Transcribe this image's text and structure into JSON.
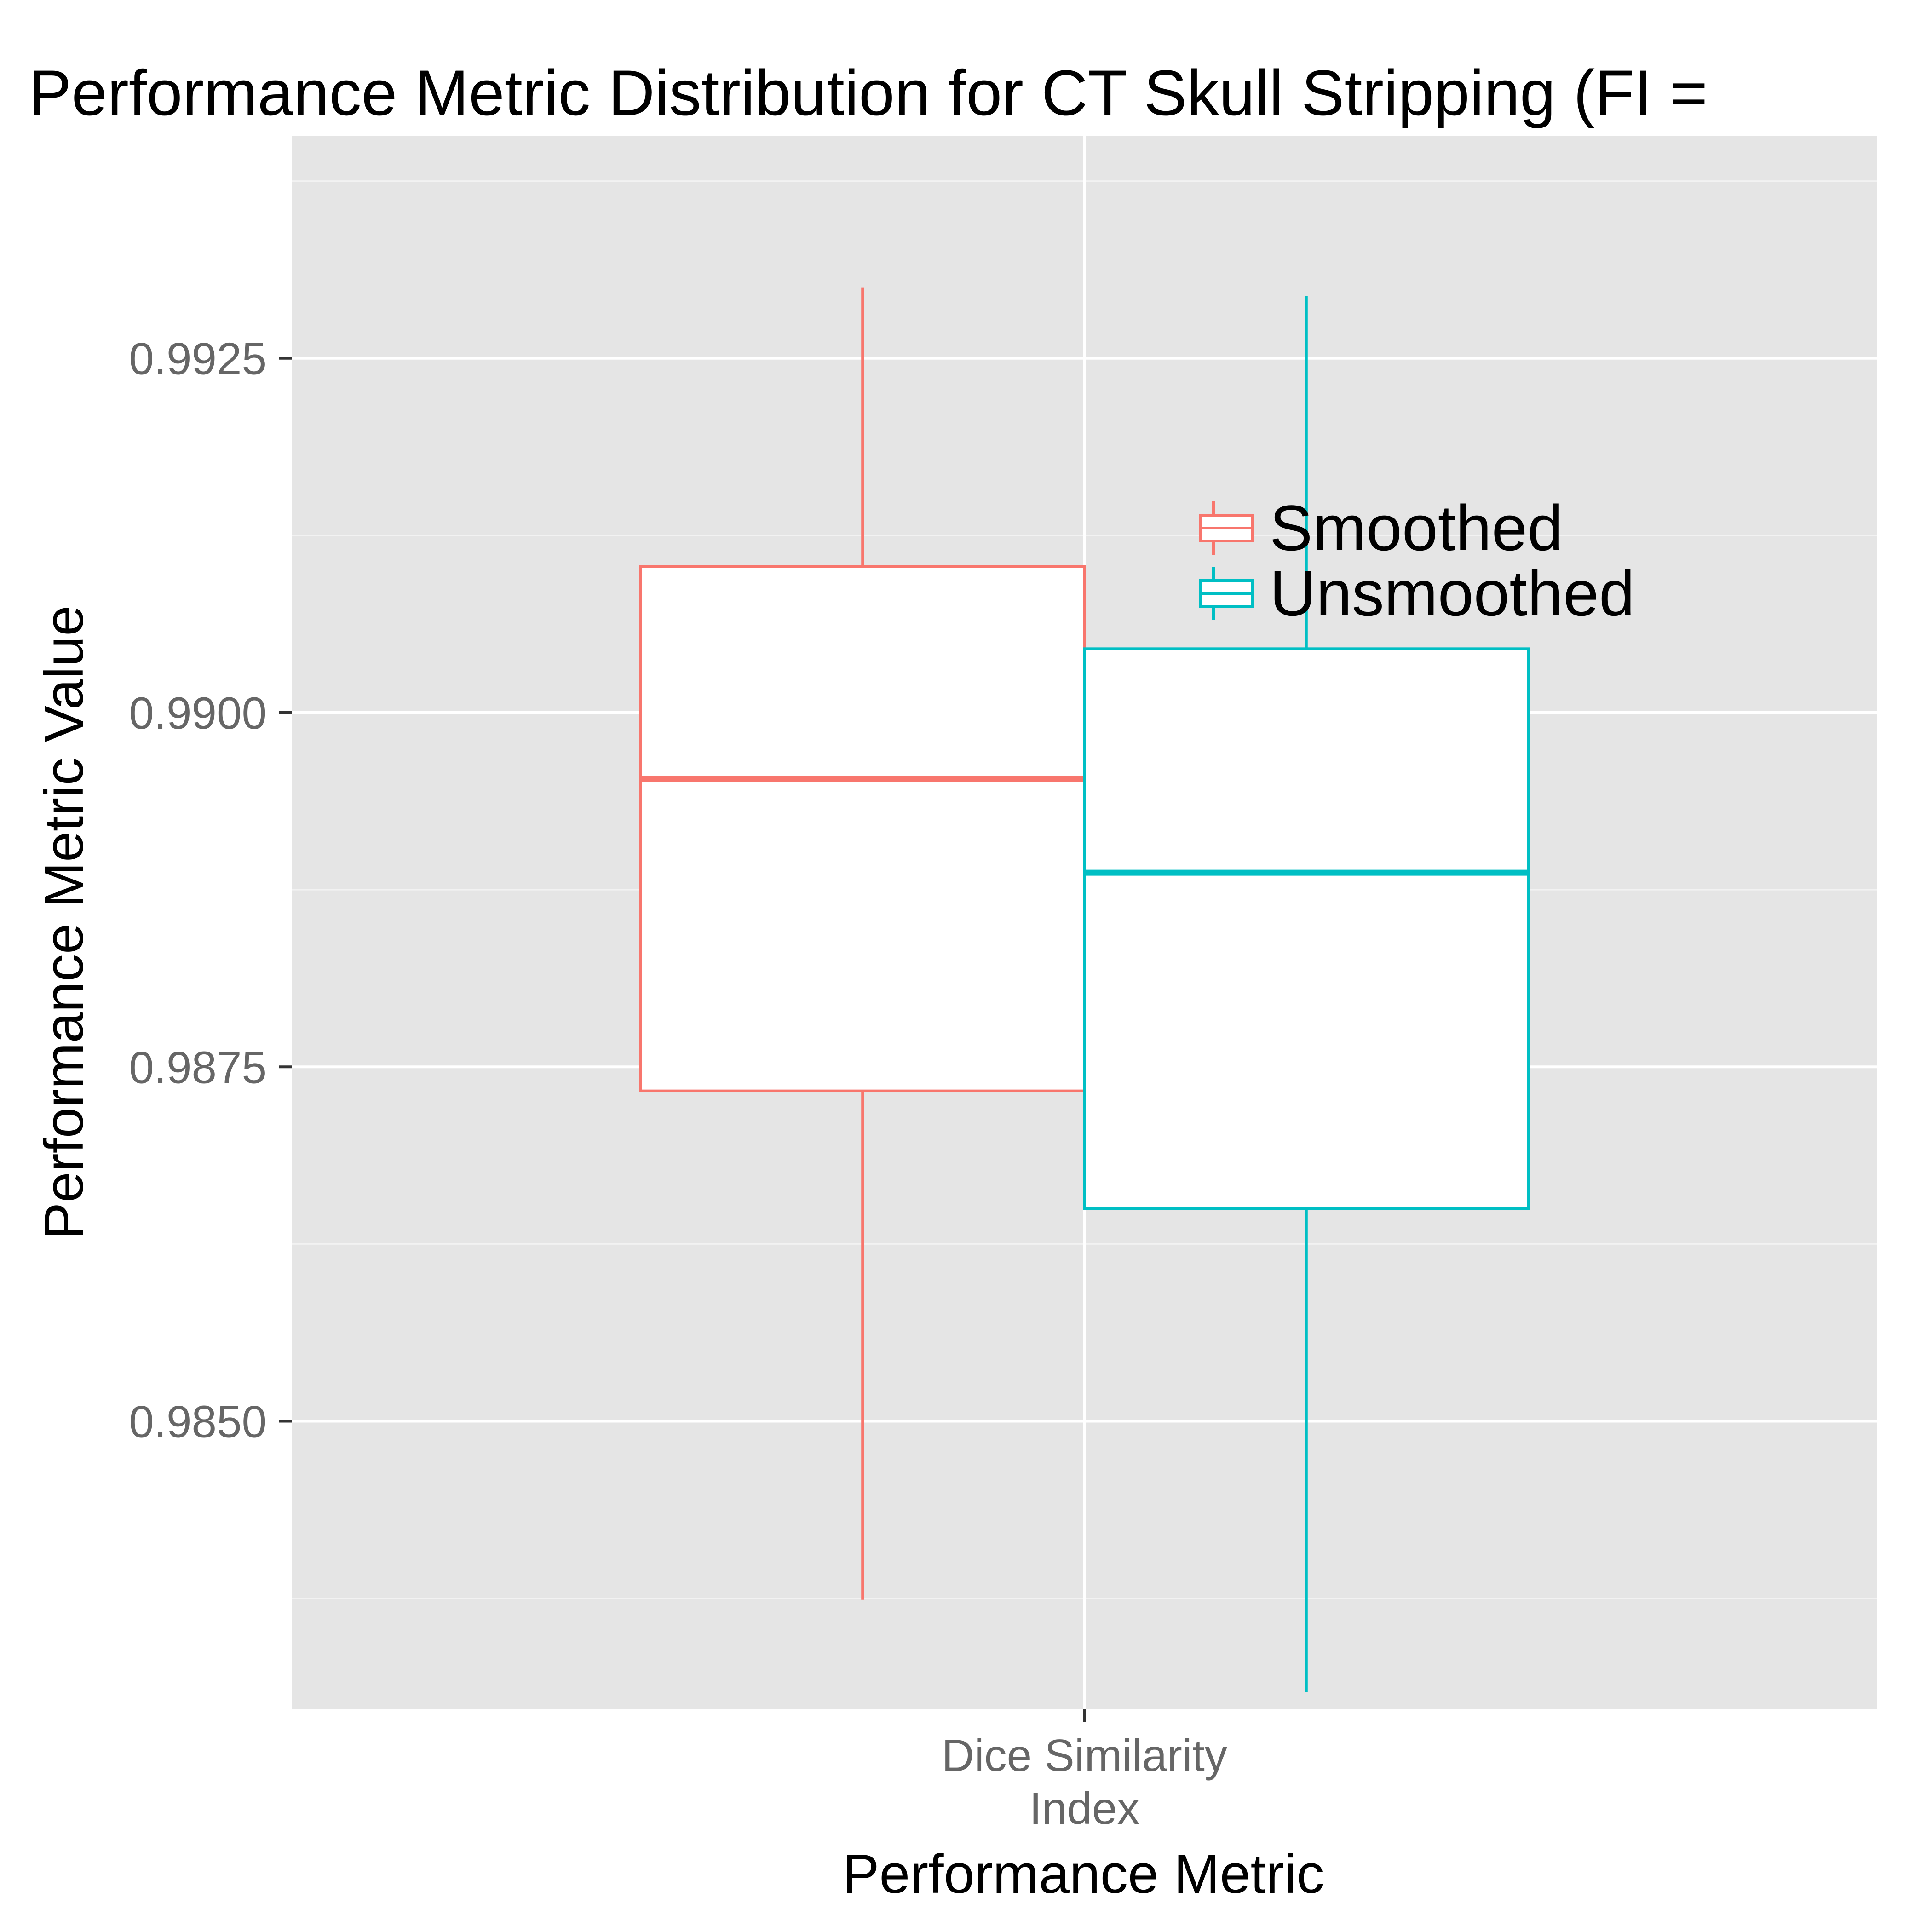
{
  "chart_data": {
    "type": "box",
    "title": "Performance Metric Distribution for CT Skull Stripping (FI =",
    "xlabel": "Performance Metric",
    "ylabel": "Performance Metric Value",
    "categories": [
      "Dice Similarity\nIndex"
    ],
    "ylim": [
      0.98297,
      0.99407
    ],
    "yticks": [
      0.985,
      0.9875,
      0.99,
      0.9925
    ],
    "ytick_labels": [
      "0.9850",
      "0.9875",
      "0.9900",
      "0.9925"
    ],
    "grid": true,
    "legend_position": "top-right inside",
    "series": [
      {
        "name": "Smoothed",
        "color": "#F8766D",
        "whisker_low": 0.98374,
        "q1": 0.98733,
        "median": 0.98953,
        "q3": 0.99103,
        "whisker_high": 0.993
      },
      {
        "name": "Unsmoothed",
        "color": "#00BFC4",
        "whisker_low": 0.98309,
        "q1": 0.9865,
        "median": 0.98887,
        "q3": 0.99045,
        "whisker_high": 0.99294
      }
    ]
  }
}
